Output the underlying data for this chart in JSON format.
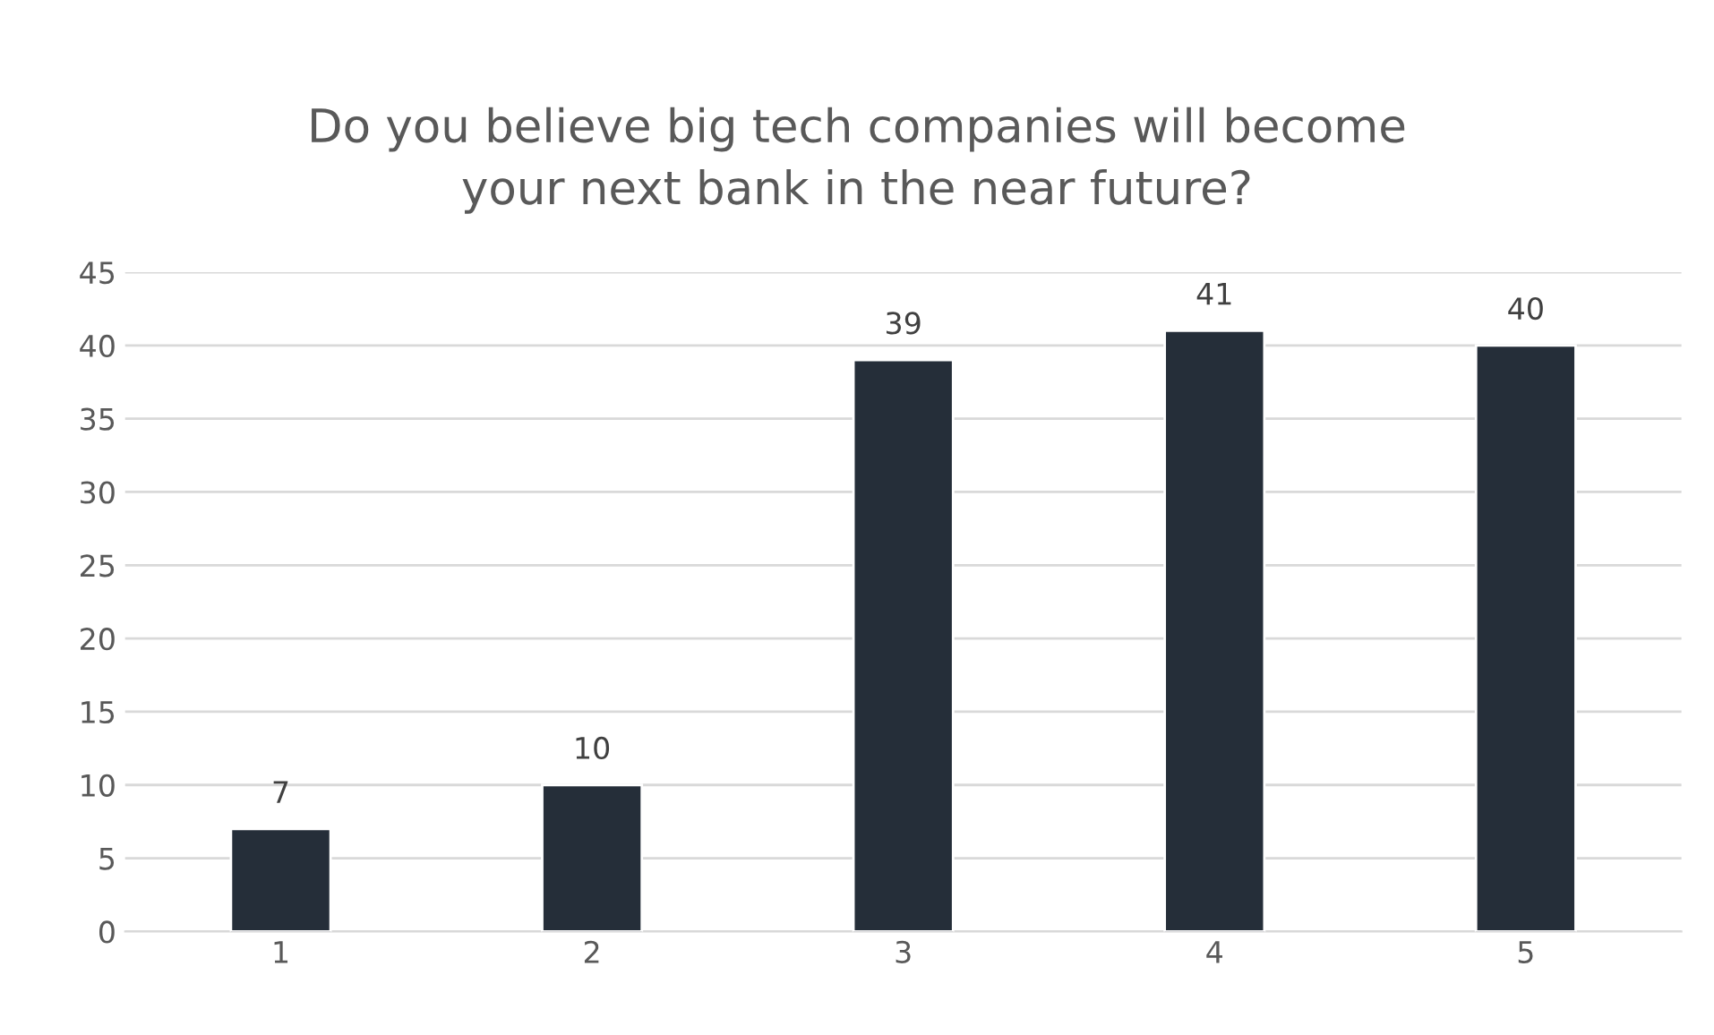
{
  "chart_data": {
    "type": "bar",
    "title": "Do you believe big tech companies will become\nyour next bank in the near future?",
    "categories": [
      "1",
      "2",
      "3",
      "4",
      "5"
    ],
    "values": [
      7,
      10,
      39,
      41,
      40
    ],
    "color": "#252e39",
    "ylim": [
      0,
      45
    ],
    "yticks": [
      0,
      5,
      10,
      15,
      20,
      25,
      30,
      35,
      40,
      45
    ],
    "grid": "y",
    "data_labels": true,
    "legend": false
  }
}
